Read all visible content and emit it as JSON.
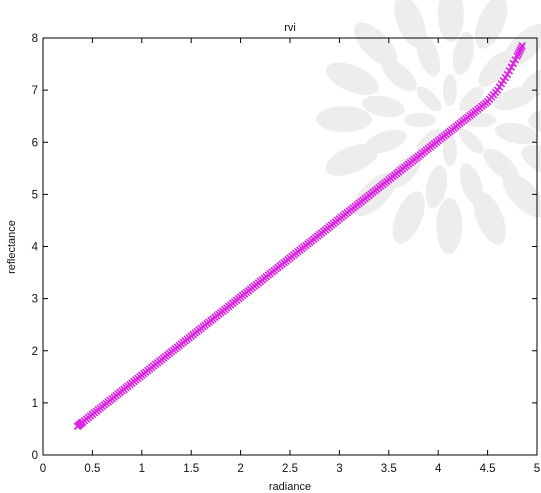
{
  "chart_data": {
    "type": "scatter",
    "title": "rvi",
    "xlabel": "radiance",
    "ylabel": "reflectance",
    "xlim": [
      0,
      5
    ],
    "ylim": [
      0,
      8
    ],
    "xticks": [
      0,
      0.5,
      1,
      1.5,
      2,
      2.5,
      3,
      3.5,
      4,
      4.5,
      5
    ],
    "yticks": [
      0,
      1,
      2,
      3,
      4,
      5,
      6,
      7,
      8
    ],
    "xtick_labels": [
      "0",
      "0.5",
      "1",
      "1.5",
      "2",
      "2.5",
      "3",
      "3.5",
      "4",
      "4.5",
      "5"
    ],
    "ytick_labels": [
      "0",
      "1",
      "2",
      "3",
      "4",
      "5",
      "6",
      "7",
      "8"
    ],
    "grid": false,
    "series": [
      {
        "marker": "x",
        "color": "#e020e8",
        "x": [
          0.35,
          0.4,
          0.5,
          0.6,
          0.7,
          0.8,
          0.9,
          1.0,
          1.1,
          1.2,
          1.3,
          1.4,
          1.5,
          1.6,
          1.7,
          1.8,
          1.9,
          2.0,
          2.1,
          2.2,
          2.3,
          2.4,
          2.5,
          2.6,
          2.7,
          2.8,
          2.9,
          3.0,
          3.1,
          3.2,
          3.3,
          3.4,
          3.5,
          3.6,
          3.7,
          3.8,
          3.9,
          4.0,
          4.1,
          4.2,
          4.3,
          4.4,
          4.5,
          4.6,
          4.7,
          4.8,
          4.85
        ],
        "y": [
          0.55,
          0.63,
          0.78,
          0.93,
          1.08,
          1.23,
          1.38,
          1.53,
          1.68,
          1.83,
          1.98,
          2.13,
          2.28,
          2.43,
          2.58,
          2.73,
          2.88,
          3.03,
          3.18,
          3.33,
          3.48,
          3.63,
          3.78,
          3.93,
          4.08,
          4.23,
          4.38,
          4.53,
          4.68,
          4.83,
          4.98,
          5.13,
          5.28,
          5.43,
          5.58,
          5.73,
          5.88,
          6.03,
          6.18,
          6.33,
          6.48,
          6.63,
          6.78,
          7.0,
          7.3,
          7.65,
          7.85
        ]
      }
    ]
  }
}
